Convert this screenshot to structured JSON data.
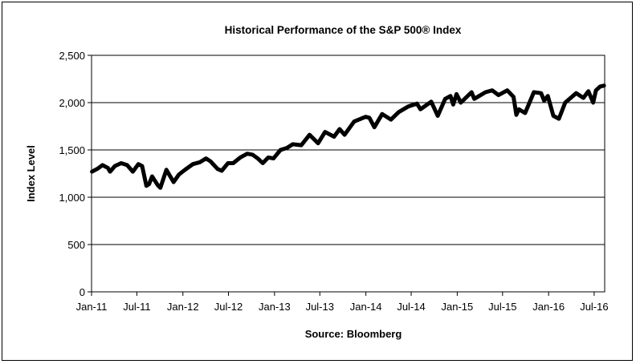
{
  "chart_data": {
    "type": "line",
    "title": "Historical Performance of the S&P 500® Index",
    "xlabel": "Source:  Bloomberg",
    "ylabel": "Index Level",
    "ylim": [
      0,
      2500
    ],
    "yticks": [
      0,
      500,
      1000,
      1500,
      2000,
      2500
    ],
    "ytick_labels": [
      "0",
      "500",
      "1,000",
      "1,500",
      "2,000",
      "2,500"
    ],
    "xtick_labels": [
      "Jan-11",
      "Jul-11",
      "Jan-12",
      "Jul-12",
      "Jan-13",
      "Jul-13",
      "Jan-14",
      "Jul-14",
      "Jan-15",
      "Jul-15",
      "Jan-16",
      "Jul-16"
    ],
    "xtick_dates": [
      "2011-01-01",
      "2011-07-01",
      "2012-01-01",
      "2012-07-01",
      "2013-01-01",
      "2013-07-01",
      "2014-01-01",
      "2014-07-01",
      "2015-01-01",
      "2015-07-01",
      "2016-01-01",
      "2016-07-01"
    ],
    "xlim": [
      "2011-01-01",
      "2016-08-12"
    ],
    "grid": "horizontal",
    "legend": "none",
    "line_color": "#000000",
    "series": [
      {
        "x": [
          "2011-01-03",
          "2011-01-24",
          "2011-02-14",
          "2011-03-07",
          "2011-03-16",
          "2011-04-04",
          "2011-04-29",
          "2011-05-23",
          "2011-06-15",
          "2011-07-07",
          "2011-07-22",
          "2011-08-08",
          "2011-08-19",
          "2011-08-31",
          "2011-09-22",
          "2011-10-03",
          "2011-10-27",
          "2011-11-25",
          "2011-12-16",
          "2012-01-09",
          "2012-02-10",
          "2012-03-09",
          "2012-04-02",
          "2012-04-20",
          "2012-05-18",
          "2012-06-04",
          "2012-06-29",
          "2012-07-20",
          "2012-08-17",
          "2012-09-14",
          "2012-10-05",
          "2012-10-26",
          "2012-11-15",
          "2012-12-07",
          "2012-12-28",
          "2013-01-25",
          "2013-02-19",
          "2013-03-15",
          "2013-04-18",
          "2013-05-21",
          "2013-06-24",
          "2013-07-22",
          "2013-08-27",
          "2013-09-18",
          "2013-10-08",
          "2013-11-15",
          "2013-12-31",
          "2014-01-15",
          "2014-02-04",
          "2014-03-07",
          "2014-04-11",
          "2014-05-12",
          "2014-06-20",
          "2014-07-24",
          "2014-08-07",
          "2014-09-19",
          "2014-10-15",
          "2014-11-14",
          "2014-12-05",
          "2014-12-16",
          "2014-12-29",
          "2015-01-15",
          "2015-02-27",
          "2015-03-10",
          "2015-04-24",
          "2015-05-21",
          "2015-06-15",
          "2015-07-20",
          "2015-08-14",
          "2015-08-25",
          "2015-09-04",
          "2015-09-29",
          "2015-11-03",
          "2015-12-02",
          "2015-12-14",
          "2015-12-29",
          "2016-01-20",
          "2016-02-11",
          "2016-03-07",
          "2016-04-20",
          "2016-05-19",
          "2016-06-08",
          "2016-06-27",
          "2016-07-08",
          "2016-07-25",
          "2016-08-09"
        ],
        "y": [
          1270,
          1300,
          1340,
          1310,
          1270,
          1330,
          1360,
          1340,
          1270,
          1350,
          1330,
          1120,
          1140,
          1220,
          1130,
          1100,
          1290,
          1160,
          1240,
          1290,
          1350,
          1370,
          1410,
          1380,
          1300,
          1280,
          1360,
          1360,
          1420,
          1460,
          1450,
          1410,
          1360,
          1420,
          1410,
          1500,
          1520,
          1560,
          1550,
          1660,
          1570,
          1690,
          1640,
          1720,
          1660,
          1800,
          1850,
          1840,
          1740,
          1880,
          1820,
          1900,
          1960,
          1990,
          1930,
          2010,
          1860,
          2040,
          2070,
          1980,
          2090,
          2000,
          2110,
          2040,
          2110,
          2130,
          2080,
          2130,
          2060,
          1870,
          1930,
          1890,
          2110,
          2100,
          2020,
          2070,
          1860,
          1830,
          2000,
          2100,
          2050,
          2120,
          2000,
          2130,
          2170,
          2180
        ]
      }
    ]
  }
}
